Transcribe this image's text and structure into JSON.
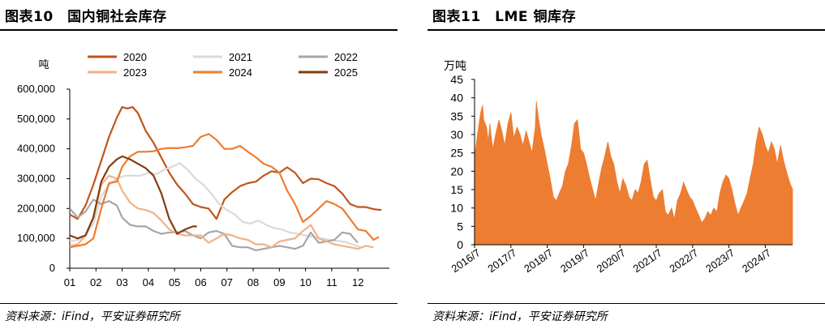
{
  "left": {
    "title": "图表10　国内铜社会库存",
    "source": "资料来源：iFind，平安证券研究所",
    "chart_data": {
      "type": "line",
      "title": "国内铜社会库存",
      "ylabel": "吨",
      "ylim": [
        0,
        600000
      ],
      "yticks": [
        0,
        100000,
        200000,
        300000,
        400000,
        500000,
        600000
      ],
      "ytick_labels": [
        "0",
        "100,000",
        "200,000",
        "300,000",
        "400,000",
        "500,000",
        "600,000"
      ],
      "xlim": [
        1,
        13.2
      ],
      "xticks": [
        1,
        2,
        3,
        4,
        5,
        6,
        7,
        8,
        9,
        10,
        11,
        12
      ],
      "xtick_labels": [
        "01",
        "02",
        "03",
        "04",
        "05",
        "06",
        "07",
        "08",
        "09",
        "10",
        "11",
        "12"
      ],
      "legend": "top",
      "series": [
        {
          "name": "2020",
          "color": "#C0561A",
          "width": 2.2,
          "x": [
            1,
            1.3,
            1.6,
            1.9,
            2.2,
            2.5,
            2.8,
            3.0,
            3.2,
            3.4,
            3.6,
            3.9,
            4.2,
            4.5,
            4.8,
            5.1,
            5.4,
            5.7,
            6.0,
            6.3,
            6.6,
            6.9,
            7.2,
            7.5,
            7.8,
            8.1,
            8.4,
            8.7,
            9.0,
            9.3,
            9.6,
            9.9,
            10.2,
            10.5,
            10.8,
            11.1,
            11.4,
            11.7,
            12.0,
            12.3,
            12.6,
            12.9
          ],
          "y": [
            180000,
            165000,
            210000,
            280000,
            360000,
            440000,
            505000,
            540000,
            535000,
            540000,
            520000,
            460000,
            420000,
            370000,
            320000,
            280000,
            250000,
            215000,
            205000,
            200000,
            165000,
            230000,
            255000,
            275000,
            285000,
            290000,
            310000,
            325000,
            320000,
            338000,
            320000,
            285000,
            300000,
            298000,
            285000,
            275000,
            250000,
            215000,
            205000,
            205000,
            198000,
            195000
          ]
        },
        {
          "name": "2021",
          "color": "#D9D9D9",
          "width": 2.2,
          "x": [
            1,
            1.3,
            1.6,
            1.9,
            2.2,
            2.5,
            2.8,
            3.1,
            3.4,
            3.7,
            4.0,
            4.3,
            4.6,
            4.9,
            5.2,
            5.5,
            5.8,
            6.1,
            6.4,
            6.7,
            7.0,
            7.3,
            7.6,
            7.9,
            8.2,
            8.5,
            8.8,
            9.1,
            9.4,
            9.7,
            10.0,
            10.3,
            10.6,
            10.9,
            11.2,
            11.5,
            11.8,
            12.1
          ],
          "y": [
            90000,
            95000,
            110000,
            150000,
            240000,
            280000,
            300000,
            310000,
            310000,
            310000,
            320000,
            315000,
            330000,
            340000,
            352000,
            330000,
            300000,
            280000,
            250000,
            215000,
            195000,
            180000,
            155000,
            150000,
            160000,
            145000,
            135000,
            130000,
            120000,
            115000,
            110000,
            105000,
            100000,
            95000,
            92000,
            88000,
            80000,
            70000
          ]
        },
        {
          "name": "2022",
          "color": "#A6A6A6",
          "width": 2.2,
          "x": [
            1,
            1.3,
            1.6,
            1.9,
            2.2,
            2.5,
            2.8,
            3.0,
            3.3,
            3.6,
            3.9,
            4.2,
            4.5,
            4.8,
            5.1,
            5.4,
            5.7,
            6.0,
            6.3,
            6.6,
            6.9,
            7.2,
            7.5,
            7.8,
            8.1,
            8.4,
            8.7,
            9.0,
            9.3,
            9.6,
            9.9,
            10.2,
            10.5,
            10.8,
            11.1,
            11.4,
            11.7,
            12.0
          ],
          "y": [
            200000,
            170000,
            190000,
            230000,
            215000,
            225000,
            210000,
            170000,
            145000,
            140000,
            140000,
            125000,
            115000,
            120000,
            120000,
            125000,
            110000,
            100000,
            120000,
            125000,
            115000,
            75000,
            70000,
            70000,
            60000,
            65000,
            70000,
            75000,
            70000,
            65000,
            75000,
            120000,
            85000,
            90000,
            95000,
            120000,
            115000,
            85000
          ]
        },
        {
          "name": "2023",
          "color": "#F4B183",
          "width": 2.2,
          "x": [
            1,
            1.3,
            1.6,
            1.9,
            2.2,
            2.5,
            2.8,
            3.0,
            3.3,
            3.6,
            3.9,
            4.2,
            4.5,
            4.8,
            5.1,
            5.4,
            5.7,
            6.0,
            6.3,
            6.6,
            6.9,
            7.2,
            7.5,
            7.8,
            8.1,
            8.4,
            8.7,
            9.0,
            9.3,
            9.6,
            9.9,
            10.2,
            10.5,
            10.8,
            11.1,
            11.4,
            11.7,
            12.0,
            12.3,
            12.6
          ],
          "y": [
            75000,
            80000,
            110000,
            170000,
            280000,
            310000,
            300000,
            260000,
            220000,
            200000,
            195000,
            185000,
            160000,
            130000,
            115000,
            110000,
            110000,
            110000,
            85000,
            100000,
            115000,
            110000,
            100000,
            95000,
            80000,
            80000,
            70000,
            90000,
            95000,
            100000,
            125000,
            145000,
            100000,
            90000,
            80000,
            75000,
            70000,
            65000,
            75000,
            70000
          ]
        },
        {
          "name": "2024",
          "color": "#ED7D31",
          "width": 2.2,
          "x": [
            1,
            1.3,
            1.6,
            1.9,
            2.2,
            2.5,
            2.8,
            3.0,
            3.3,
            3.6,
            3.9,
            4.2,
            4.5,
            4.8,
            5.1,
            5.4,
            5.7,
            6.0,
            6.3,
            6.6,
            6.9,
            7.2,
            7.5,
            7.8,
            8.1,
            8.4,
            8.7,
            9.0,
            9.3,
            9.6,
            9.9,
            10.2,
            10.5,
            10.8,
            11.1,
            11.4,
            11.7,
            12.0,
            12.3,
            12.6,
            12.8
          ],
          "y": [
            70000,
            75000,
            80000,
            100000,
            200000,
            285000,
            290000,
            340000,
            375000,
            390000,
            390000,
            392000,
            400000,
            403000,
            402000,
            405000,
            410000,
            440000,
            450000,
            430000,
            400000,
            400000,
            410000,
            390000,
            372000,
            350000,
            340000,
            320000,
            260000,
            215000,
            155000,
            175000,
            200000,
            225000,
            215000,
            200000,
            165000,
            130000,
            125000,
            95000,
            105000
          ]
        },
        {
          "name": "2025",
          "color": "#843C0C",
          "width": 2.2,
          "x": [
            1,
            1.3,
            1.6,
            1.9,
            2.2,
            2.5,
            2.8,
            3.0,
            3.3,
            3.6,
            3.9,
            4.2,
            4.5,
            4.8,
            5.1,
            5.4,
            5.7,
            5.85
          ],
          "y": [
            110000,
            100000,
            110000,
            170000,
            290000,
            340000,
            365000,
            375000,
            365000,
            350000,
            335000,
            310000,
            250000,
            165000,
            115000,
            130000,
            140000,
            140000
          ]
        }
      ]
    }
  },
  "right": {
    "title": "图表11　LME 铜库存",
    "source": "资料来源：iFind，平安证券研究所",
    "chart_data": {
      "type": "area",
      "title": "LME 铜库存",
      "ylabel": "万吨",
      "ylim": [
        0,
        45
      ],
      "yticks": [
        0,
        5,
        10,
        15,
        20,
        25,
        30,
        35,
        40,
        45
      ],
      "xlim": [
        2016.5,
        2025.25
      ],
      "xticks": [
        2016.5,
        2017.5,
        2018.5,
        2019.5,
        2020.5,
        2021.5,
        2022.5,
        2023.5,
        2024.5
      ],
      "xtick_labels": [
        "2016/7",
        "2017/7",
        "2018/7",
        "2019/7",
        "2020/7",
        "2021/7",
        "2022/7",
        "2023/7",
        "2024/7"
      ],
      "color": "#ED7D31",
      "x": [
        2016.5,
        2016.58,
        2016.67,
        2016.72,
        2016.75,
        2016.83,
        2016.88,
        2016.92,
        2017.0,
        2017.08,
        2017.17,
        2017.25,
        2017.33,
        2017.42,
        2017.5,
        2017.58,
        2017.67,
        2017.75,
        2017.83,
        2017.92,
        2018.0,
        2018.08,
        2018.17,
        2018.2,
        2018.25,
        2018.33,
        2018.42,
        2018.5,
        2018.58,
        2018.67,
        2018.75,
        2018.83,
        2018.92,
        2019.0,
        2019.08,
        2019.17,
        2019.25,
        2019.33,
        2019.42,
        2019.5,
        2019.58,
        2019.67,
        2019.75,
        2019.83,
        2019.92,
        2020.0,
        2020.08,
        2020.17,
        2020.25,
        2020.33,
        2020.42,
        2020.5,
        2020.58,
        2020.67,
        2020.75,
        2020.83,
        2020.92,
        2021.0,
        2021.08,
        2021.17,
        2021.25,
        2021.33,
        2021.42,
        2021.5,
        2021.58,
        2021.67,
        2021.75,
        2021.83,
        2021.92,
        2022.0,
        2022.08,
        2022.17,
        2022.25,
        2022.33,
        2022.42,
        2022.5,
        2022.58,
        2022.67,
        2022.75,
        2022.83,
        2022.92,
        2023.0,
        2023.08,
        2023.17,
        2023.25,
        2023.33,
        2023.42,
        2023.5,
        2023.58,
        2023.67,
        2023.75,
        2023.83,
        2023.92,
        2024.0,
        2024.08,
        2024.17,
        2024.25,
        2024.33,
        2024.42,
        2024.5,
        2024.58,
        2024.67,
        2024.75,
        2024.83,
        2024.92,
        2025.0,
        2025.08,
        2025.17,
        2025.25
      ],
      "y": [
        24,
        30,
        36,
        38,
        34,
        32,
        28,
        33,
        26,
        30,
        34,
        31,
        27,
        33,
        36,
        29,
        32,
        30,
        27,
        31,
        28,
        25,
        32,
        39,
        35,
        30,
        26,
        22,
        18,
        13,
        12,
        14,
        16,
        20,
        22,
        27,
        33,
        34,
        26,
        25,
        22,
        18,
        15,
        12,
        17,
        21,
        24,
        28,
        24,
        22,
        17,
        14,
        18,
        16,
        13,
        12,
        15,
        14,
        17,
        22,
        23,
        18,
        13,
        12,
        14,
        15,
        9,
        8,
        10,
        7,
        12,
        14,
        17,
        15,
        13,
        12,
        10,
        8,
        6,
        7,
        9,
        8,
        10,
        9,
        14,
        17,
        19,
        18,
        15,
        11,
        8,
        10,
        12,
        14,
        18,
        22,
        28,
        32,
        30,
        27,
        25,
        28,
        26,
        22,
        27,
        23,
        20,
        17,
        15
      ]
    }
  }
}
